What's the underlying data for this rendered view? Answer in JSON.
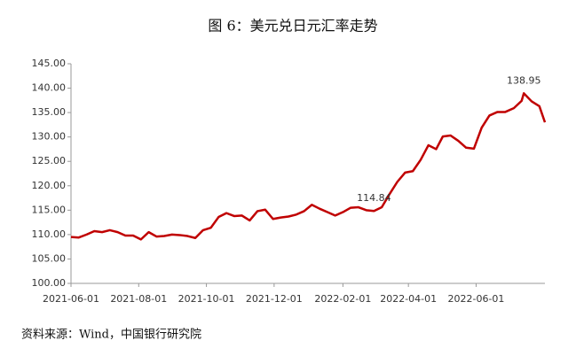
{
  "chart_data": {
    "type": "line",
    "title": "图 6：美元兑日元汇率走势",
    "source": "资料来源：Wind，中国银行研究院",
    "x": [
      "2021-06-01",
      "2021-06-08",
      "2021-06-15",
      "2021-06-22",
      "2021-06-29",
      "2021-07-06",
      "2021-07-13",
      "2021-07-20",
      "2021-07-27",
      "2021-08-03",
      "2021-08-10",
      "2021-08-17",
      "2021-08-24",
      "2021-08-31",
      "2021-09-07",
      "2021-09-14",
      "2021-09-21",
      "2021-09-28",
      "2021-10-05",
      "2021-10-12",
      "2021-10-19",
      "2021-10-26",
      "2021-11-02",
      "2021-11-09",
      "2021-11-16",
      "2021-11-23",
      "2021-11-30",
      "2021-12-07",
      "2021-12-14",
      "2021-12-21",
      "2021-12-28",
      "2022-01-04",
      "2022-01-11",
      "2022-01-18",
      "2022-01-25",
      "2022-02-01",
      "2022-02-08",
      "2022-02-15",
      "2022-02-22",
      "2022-03-01",
      "2022-03-08",
      "2022-03-15",
      "2022-03-22",
      "2022-03-29",
      "2022-04-05",
      "2022-04-12",
      "2022-04-19",
      "2022-04-26",
      "2022-05-02",
      "2022-05-09",
      "2022-05-16",
      "2022-05-23",
      "2022-05-30",
      "2022-06-06",
      "2022-06-13",
      "2022-06-20",
      "2022-06-27",
      "2022-07-05",
      "2022-07-12",
      "2022-07-14",
      "2022-07-21",
      "2022-07-28",
      "2022-08-02"
    ],
    "series": [
      {
        "name": "美元兑日元",
        "color": "#c00000",
        "values": [
          109.5,
          109.4,
          110.0,
          110.7,
          110.5,
          110.9,
          110.5,
          109.8,
          109.8,
          109.0,
          110.5,
          109.6,
          109.7,
          110.0,
          109.9,
          109.7,
          109.3,
          110.9,
          111.4,
          113.6,
          114.4,
          113.8,
          113.9,
          112.9,
          114.8,
          115.1,
          113.2,
          113.5,
          113.7,
          114.1,
          114.8,
          116.1,
          115.3,
          114.6,
          113.9,
          114.6,
          115.5,
          115.6,
          115.0,
          114.84,
          115.6,
          118.3,
          120.8,
          122.7,
          123.0,
          125.3,
          128.3,
          127.5,
          130.1,
          130.3,
          129.2,
          127.8,
          127.6,
          131.9,
          134.4,
          135.1,
          135.1,
          135.9,
          137.4,
          138.95,
          137.3,
          136.3,
          133.0
        ]
      }
    ],
    "value_label_indices": [
      39,
      59
    ],
    "xlim": [
      "2021-06-01",
      "2022-08-02"
    ],
    "xticks": [
      "2021-06-01",
      "2021-08-01",
      "2021-10-01",
      "2021-12-01",
      "2022-02-01",
      "2022-04-01",
      "2022-06-01"
    ],
    "ylim": [
      100,
      145
    ],
    "yticks": [
      {
        "value": 100,
        "label": "100.00"
      },
      {
        "value": 105,
        "label": "105.00"
      },
      {
        "value": 110,
        "label": "110.00"
      },
      {
        "value": 115,
        "label": "115.00"
      },
      {
        "value": 120,
        "label": "120.00"
      },
      {
        "value": 125,
        "label": "125.00"
      },
      {
        "value": 130,
        "label": "130.00"
      },
      {
        "value": 135,
        "label": "135.00"
      },
      {
        "value": 140,
        "label": "140.00"
      },
      {
        "value": 145,
        "label": "145.00"
      }
    ],
    "grid": false
  }
}
